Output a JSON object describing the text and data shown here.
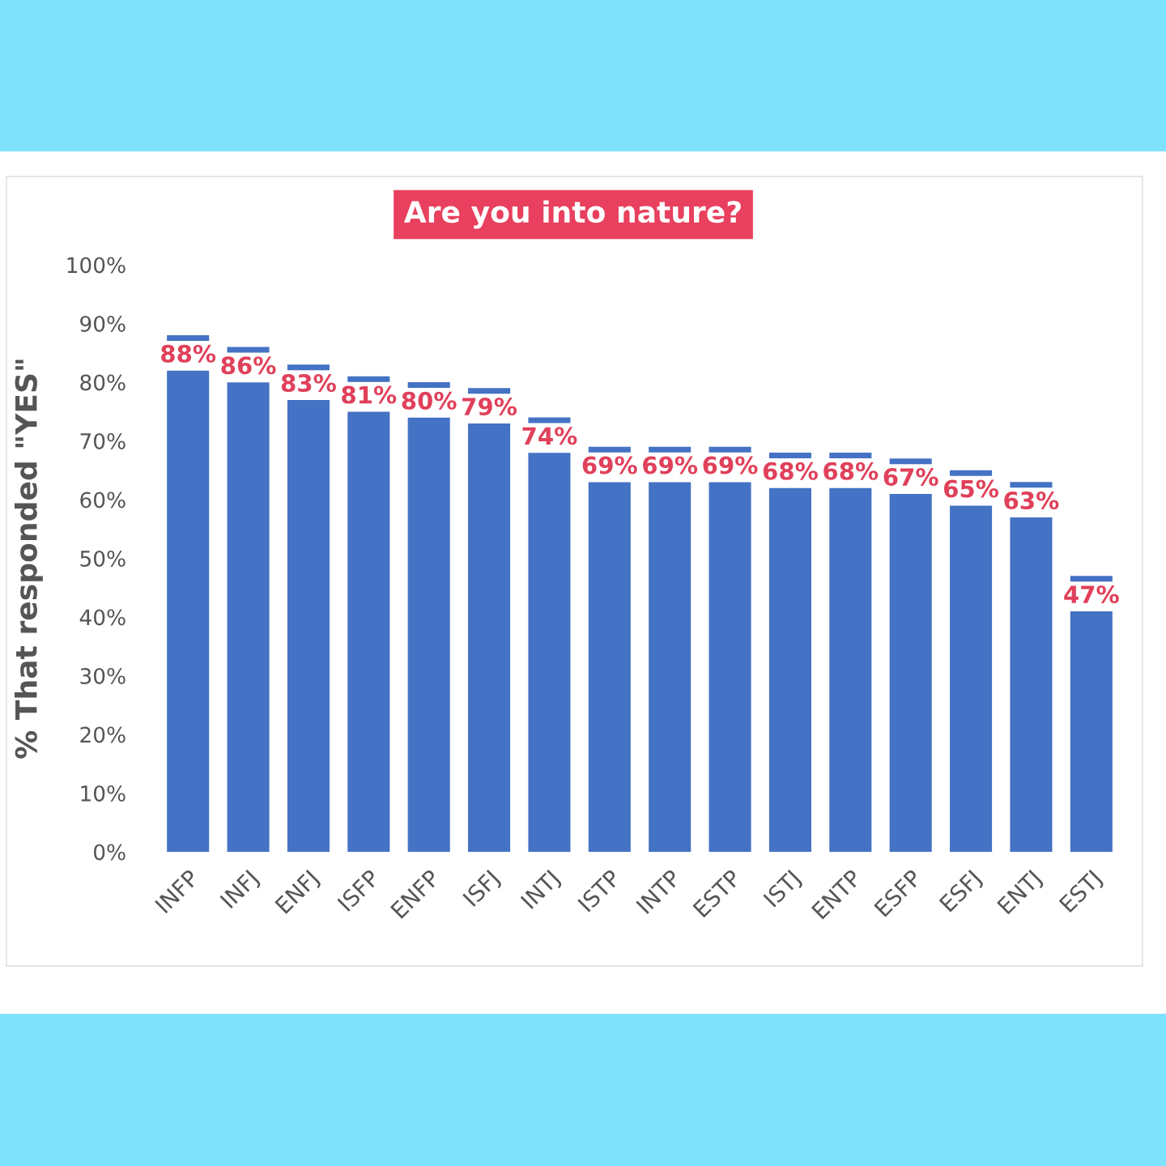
{
  "chart_data": {
    "type": "bar",
    "title": "Are you into nature?",
    "ylabel": "% That responded \"YES\"",
    "categories": [
      "INFP",
      "INFJ",
      "ENFJ",
      "ISFP",
      "ENFP",
      "ISFJ",
      "INTJ",
      "ISTP",
      "INTP",
      "ESTP",
      "ISTJ",
      "ENTP",
      "ESFP",
      "ESFJ",
      "ENTJ",
      "ESTJ"
    ],
    "values": [
      88,
      86,
      83,
      81,
      80,
      79,
      74,
      69,
      69,
      69,
      68,
      68,
      67,
      65,
      63,
      47
    ],
    "value_labels": [
      "88%",
      "86%",
      "83%",
      "81%",
      "80%",
      "79%",
      "74%",
      "69%",
      "69%",
      "69%",
      "68%",
      "68%",
      "67%",
      "65%",
      "63%",
      "47%"
    ],
    "color": "#4472c4",
    "ylim": [
      0,
      100
    ],
    "yticks": [
      {
        "value": 0,
        "label": "0%"
      },
      {
        "value": 10,
        "label": "10%"
      },
      {
        "value": 20,
        "label": "20%"
      },
      {
        "value": 30,
        "label": "30%"
      },
      {
        "value": 40,
        "label": "40%"
      },
      {
        "value": 50,
        "label": "50%"
      },
      {
        "value": 60,
        "label": "60%"
      },
      {
        "value": 70,
        "label": "70%"
      },
      {
        "value": 80,
        "label": "80%"
      },
      {
        "value": 90,
        "label": "90%"
      },
      {
        "value": 100,
        "label": "100%"
      }
    ],
    "grid": false
  }
}
